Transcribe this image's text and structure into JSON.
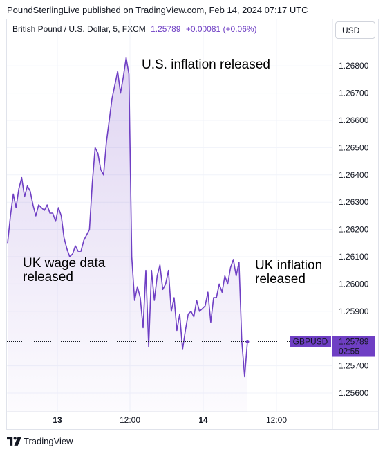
{
  "header": {
    "publisher_line": "PoundSterlingLive published on TradingView.com, Feb 14, 2024 07:17 UTC"
  },
  "legend": {
    "symbol": "British Pound / U.S. Dollar, 5, FXCM",
    "last": "1.25789",
    "change": "+0.00081 (+0.06%)"
  },
  "currency_button": "USD",
  "footer": {
    "brand": "TradingView"
  },
  "price_tag": {
    "symbol": "GBPUSD",
    "price": "1.25789",
    "countdown": "02:55"
  },
  "colors": {
    "line": "#6f3fc4",
    "tag_bg": "#6f3fc4",
    "tag_text": "#ffffff",
    "grid": "#f0f3fa"
  },
  "chart_data": {
    "type": "area",
    "series": [
      {
        "values": [
          1.2615,
          1.2625,
          1.2633,
          1.2628,
          1.2635,
          1.2639,
          1.2632,
          1.2636,
          1.2634,
          1.2629,
          1.2625,
          1.2629,
          1.2628,
          1.2627,
          1.2629,
          1.2626,
          1.2626,
          1.2623,
          1.2628,
          1.2625,
          1.2617,
          1.2613,
          1.261,
          1.2611,
          1.2614,
          1.2612,
          1.2612,
          1.2616,
          1.2618,
          1.262,
          1.2637,
          1.265,
          1.2648,
          1.2642,
          1.264,
          1.2652,
          1.266,
          1.2668,
          1.2673,
          1.2678,
          1.267,
          1.2676,
          1.2683,
          1.2677,
          1.261,
          1.2594,
          1.2599,
          1.2595,
          1.2584,
          1.2605,
          1.2577,
          1.2605,
          1.2594,
          1.2603,
          1.2607,
          1.2598,
          1.26,
          1.2605,
          1.259,
          1.2595,
          1.2583,
          1.2589,
          1.2576,
          1.2583,
          1.2589,
          1.259,
          1.2588,
          1.2594,
          1.259,
          1.2591,
          1.2592,
          1.2597,
          1.2586,
          1.2595,
          1.2595,
          1.26,
          1.2597,
          1.2603,
          1.26,
          1.2606,
          1.2609,
          1.2603,
          1.2608,
          1.2579,
          1.2566,
          1.2579
        ]
      }
    ],
    "yticks": [
      "1.25600",
      "1.25700",
      "1.25900",
      "1.26000",
      "1.26100",
      "1.26200",
      "1.26300",
      "1.26400",
      "1.26500",
      "1.26600",
      "1.26700",
      "1.26800"
    ],
    "ylim": [
      1.2555,
      1.2685
    ],
    "xticks": [
      "13",
      "12:00",
      "14",
      "12:00"
    ],
    "annotations": [
      "U.S. inflation released",
      "UK wage data",
      "released",
      "UK inflation",
      "released"
    ],
    "grid": true,
    "last_value": 1.25789
  }
}
